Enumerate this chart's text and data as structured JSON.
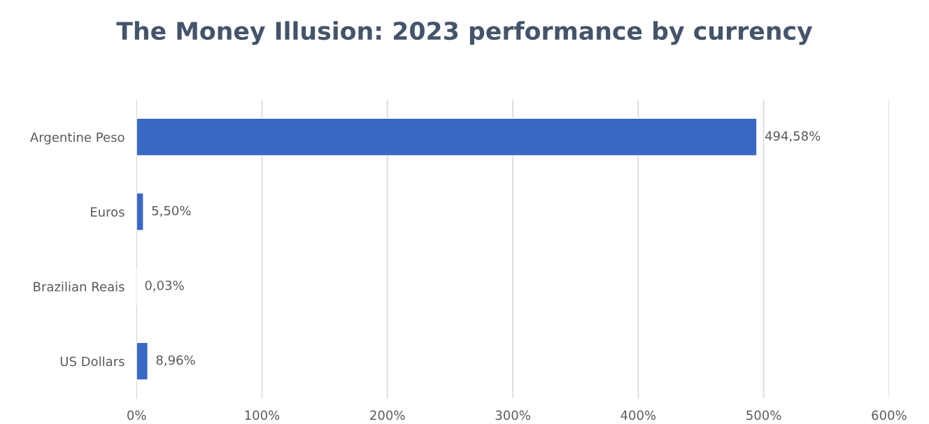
{
  "chart_data": {
    "type": "bar",
    "orientation": "horizontal",
    "title": "The Money Illusion: 2023 performance by currency",
    "categories": [
      "Argentine Peso",
      "Euros",
      "Brazilian Reais",
      "US Dollars"
    ],
    "values": [
      494.58,
      5.5,
      0.03,
      8.96
    ],
    "value_labels": [
      "494,58%",
      "5,50%",
      "0,03%",
      "8,96%"
    ],
    "color": "#3a68c6",
    "xlim": [
      0,
      600
    ],
    "xticks": [
      {
        "value": 0,
        "label": "0%"
      },
      {
        "value": 100,
        "label": "100%"
      },
      {
        "value": 200,
        "label": "200%"
      },
      {
        "value": 300,
        "label": "300%"
      },
      {
        "value": 400,
        "label": "400%"
      },
      {
        "value": 500,
        "label": "500%"
      },
      {
        "value": 600,
        "label": "600%"
      }
    ],
    "grid": "x",
    "legend": false
  }
}
